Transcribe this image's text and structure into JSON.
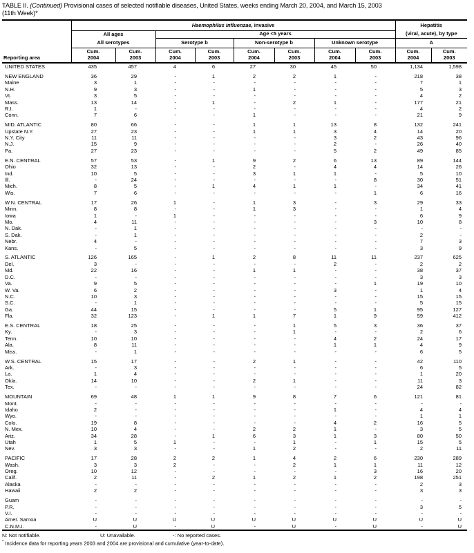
{
  "title": {
    "prefix": "TABLE II. ",
    "continued": "(Continued)",
    "line1_rest": " Provisional cases of selected notifiable diseases, United States, weeks ending March 20, 2004, and March 15, 2003",
    "line2": "(11th Week)*"
  },
  "header": {
    "reporting_area": "Reporting area",
    "group1_italic": "Haemophilus influenzae",
    "group1_rest": ", invasive",
    "hepatitis_line1": "Hepatitis",
    "hepatitis_line2": "(viral, acute), by type",
    "all_ages": "All ages",
    "age_under5": "Age <5 years",
    "all_serotypes": "All serotypes",
    "serotype_b": "Serotype b",
    "non_serotype_b": "Non-serotype b",
    "unknown_serotype": "Unknown serotype",
    "hep_a": "A",
    "cum_label": "Cum.",
    "year_2004": "2004",
    "year_2003": "2003"
  },
  "rows": [
    {
      "a": "UNITED STATES",
      "v": [
        "435",
        "457",
        "4",
        "6",
        "27",
        "30",
        "45",
        "50",
        "1,134",
        "1,598"
      ]
    },
    {
      "a": "NEW ENGLAND",
      "g": true,
      "v": [
        "36",
        "29",
        "-",
        "1",
        "2",
        "2",
        "1",
        "-",
        "218",
        "38"
      ]
    },
    {
      "a": "Maine",
      "v": [
        "3",
        "1",
        "-",
        "-",
        "-",
        "-",
        "-",
        "-",
        "7",
        "1"
      ]
    },
    {
      "a": "N.H.",
      "v": [
        "9",
        "3",
        "-",
        "-",
        "1",
        "-",
        "-",
        "-",
        "5",
        "3"
      ]
    },
    {
      "a": "Vt.",
      "v": [
        "3",
        "5",
        "-",
        "-",
        "-",
        "-",
        "-",
        "-",
        "4",
        "2"
      ]
    },
    {
      "a": "Mass.",
      "v": [
        "13",
        "14",
        "-",
        "1",
        "-",
        "2",
        "1",
        "-",
        "177",
        "21"
      ]
    },
    {
      "a": "R.I.",
      "v": [
        "1",
        "-",
        "-",
        "-",
        "-",
        "-",
        "-",
        "-",
        "4",
        "2"
      ]
    },
    {
      "a": "Conn.",
      "v": [
        "7",
        "6",
        "-",
        "-",
        "1",
        "-",
        "-",
        "-",
        "21",
        "9"
      ]
    },
    {
      "a": "MID. ATLANTIC",
      "g": true,
      "v": [
        "80",
        "66",
        "-",
        "-",
        "1",
        "1",
        "13",
        "8",
        "132",
        "241"
      ]
    },
    {
      "a": "Upstate N.Y.",
      "v": [
        "27",
        "23",
        "-",
        "-",
        "1",
        "1",
        "3",
        "4",
        "14",
        "20"
      ]
    },
    {
      "a": "N.Y. City",
      "v": [
        "11",
        "11",
        "-",
        "-",
        "-",
        "-",
        "3",
        "2",
        "43",
        "96"
      ]
    },
    {
      "a": "N.J.",
      "v": [
        "15",
        "9",
        "-",
        "-",
        "-",
        "-",
        "2",
        "-",
        "26",
        "40"
      ]
    },
    {
      "a": "Pa.",
      "v": [
        "27",
        "23",
        "-",
        "-",
        "-",
        "-",
        "5",
        "2",
        "49",
        "85"
      ]
    },
    {
      "a": "E.N. CENTRAL",
      "g": true,
      "v": [
        "57",
        "53",
        "-",
        "1",
        "9",
        "2",
        "6",
        "13",
        "89",
        "144"
      ]
    },
    {
      "a": "Ohio",
      "v": [
        "32",
        "13",
        "-",
        "-",
        "2",
        "-",
        "4",
        "4",
        "14",
        "26"
      ]
    },
    {
      "a": "Ind.",
      "v": [
        "10",
        "5",
        "-",
        "-",
        "3",
        "1",
        "1",
        "-",
        "5",
        "10"
      ]
    },
    {
      "a": "Ill.",
      "v": [
        "-",
        "24",
        "-",
        "-",
        "-",
        "-",
        "-",
        "8",
        "30",
        "51"
      ]
    },
    {
      "a": "Mich.",
      "v": [
        "8",
        "5",
        "-",
        "1",
        "4",
        "1",
        "1",
        "-",
        "34",
        "41"
      ]
    },
    {
      "a": "Wis.",
      "v": [
        "7",
        "6",
        "-",
        "-",
        "-",
        "-",
        "-",
        "1",
        "6",
        "16"
      ]
    },
    {
      "a": "W.N. CENTRAL",
      "g": true,
      "v": [
        "17",
        "26",
        "1",
        "-",
        "1",
        "3",
        "-",
        "3",
        "29",
        "33"
      ]
    },
    {
      "a": "Minn.",
      "v": [
        "8",
        "8",
        "-",
        "-",
        "1",
        "3",
        "-",
        "-",
        "1",
        "4"
      ]
    },
    {
      "a": "Iowa",
      "v": [
        "1",
        "-",
        "1",
        "-",
        "-",
        "-",
        "-",
        "-",
        "6",
        "9"
      ]
    },
    {
      "a": "Mo.",
      "v": [
        "4",
        "11",
        "-",
        "-",
        "-",
        "-",
        "-",
        "3",
        "10",
        "8"
      ]
    },
    {
      "a": "N. Dak.",
      "v": [
        "-",
        "1",
        "-",
        "-",
        "-",
        "-",
        "-",
        "-",
        "-",
        "-"
      ]
    },
    {
      "a": "S. Dak.",
      "v": [
        "-",
        "1",
        "-",
        "-",
        "-",
        "-",
        "-",
        "-",
        "2",
        "-"
      ]
    },
    {
      "a": "Nebr.",
      "v": [
        "4",
        "-",
        "-",
        "-",
        "-",
        "-",
        "-",
        "-",
        "7",
        "3"
      ]
    },
    {
      "a": "Kans.",
      "v": [
        "-",
        "5",
        "-",
        "-",
        "-",
        "-",
        "-",
        "-",
        "3",
        "9"
      ]
    },
    {
      "a": "S. ATLANTIC",
      "g": true,
      "v": [
        "126",
        "165",
        "-",
        "1",
        "2",
        "8",
        "11",
        "11",
        "237",
        "625"
      ]
    },
    {
      "a": "Del.",
      "v": [
        "3",
        "-",
        "-",
        "-",
        "-",
        "-",
        "2",
        "-",
        "2",
        "2"
      ]
    },
    {
      "a": "Md.",
      "v": [
        "22",
        "16",
        "-",
        "-",
        "1",
        "1",
        "-",
        "-",
        "38",
        "37"
      ]
    },
    {
      "a": "D.C.",
      "v": [
        "-",
        "-",
        "-",
        "-",
        "-",
        "-",
        "-",
        "-",
        "3",
        "3"
      ]
    },
    {
      "a": "Va.",
      "v": [
        "9",
        "5",
        "-",
        "-",
        "-",
        "-",
        "-",
        "1",
        "19",
        "10"
      ]
    },
    {
      "a": "W. Va.",
      "v": [
        "6",
        "2",
        "-",
        "-",
        "-",
        "-",
        "3",
        "-",
        "1",
        "4"
      ]
    },
    {
      "a": "N.C.",
      "v": [
        "10",
        "3",
        "-",
        "-",
        "-",
        "-",
        "-",
        "-",
        "15",
        "15"
      ]
    },
    {
      "a": "S.C.",
      "v": [
        "-",
        "1",
        "-",
        "-",
        "-",
        "-",
        "-",
        "-",
        "5",
        "15"
      ]
    },
    {
      "a": "Ga.",
      "v": [
        "44",
        "15",
        "-",
        "-",
        "-",
        "-",
        "5",
        "1",
        "95",
        "127"
      ]
    },
    {
      "a": "Fla.",
      "v": [
        "32",
        "123",
        "-",
        "1",
        "1",
        "7",
        "1",
        "9",
        "59",
        "412"
      ]
    },
    {
      "a": "E.S. CENTRAL",
      "g": true,
      "v": [
        "18",
        "25",
        "-",
        "-",
        "-",
        "1",
        "5",
        "3",
        "36",
        "37"
      ]
    },
    {
      "a": "Ky.",
      "v": [
        "-",
        "3",
        "-",
        "-",
        "-",
        "1",
        "-",
        "-",
        "2",
        "6"
      ]
    },
    {
      "a": "Tenn.",
      "v": [
        "10",
        "10",
        "-",
        "-",
        "-",
        "-",
        "4",
        "2",
        "24",
        "17"
      ]
    },
    {
      "a": "Ala.",
      "v": [
        "8",
        "11",
        "-",
        "-",
        "-",
        "-",
        "1",
        "1",
        "4",
        "9"
      ]
    },
    {
      "a": "Miss.",
      "v": [
        "-",
        "1",
        "-",
        "-",
        "-",
        "-",
        "-",
        "-",
        "6",
        "5"
      ]
    },
    {
      "a": "W.S. CENTRAL",
      "g": true,
      "v": [
        "15",
        "17",
        "-",
        "-",
        "2",
        "1",
        "-",
        "-",
        "42",
        "110"
      ]
    },
    {
      "a": "Ark.",
      "v": [
        "-",
        "3",
        "-",
        "-",
        "-",
        "-",
        "-",
        "-",
        "6",
        "5"
      ]
    },
    {
      "a": "La.",
      "v": [
        "1",
        "4",
        "-",
        "-",
        "-",
        "-",
        "-",
        "-",
        "1",
        "20"
      ]
    },
    {
      "a": "Okla.",
      "v": [
        "14",
        "10",
        "-",
        "-",
        "2",
        "1",
        "-",
        "-",
        "11",
        "3"
      ]
    },
    {
      "a": "Tex.",
      "v": [
        "-",
        "-",
        "-",
        "-",
        "-",
        "-",
        "-",
        "-",
        "24",
        "82"
      ]
    },
    {
      "a": "MOUNTAIN",
      "g": true,
      "v": [
        "69",
        "48",
        "1",
        "1",
        "9",
        "8",
        "7",
        "6",
        "121",
        "81"
      ]
    },
    {
      "a": "Mont.",
      "v": [
        "-",
        "-",
        "-",
        "-",
        "-",
        "-",
        "-",
        "-",
        "-",
        "-"
      ]
    },
    {
      "a": "Idaho",
      "v": [
        "2",
        "-",
        "-",
        "-",
        "-",
        "-",
        "1",
        "-",
        "4",
        "4"
      ]
    },
    {
      "a": "Wyo.",
      "v": [
        "-",
        "-",
        "-",
        "-",
        "-",
        "-",
        "-",
        "-",
        "1",
        "1"
      ]
    },
    {
      "a": "Colo.",
      "v": [
        "19",
        "8",
        "-",
        "-",
        "-",
        "-",
        "4",
        "2",
        "16",
        "5"
      ]
    },
    {
      "a": "N. Mex.",
      "v": [
        "10",
        "4",
        "-",
        "-",
        "2",
        "2",
        "1",
        "-",
        "3",
        "5"
      ]
    },
    {
      "a": "Ariz.",
      "v": [
        "34",
        "28",
        "-",
        "1",
        "6",
        "3",
        "1",
        "3",
        "80",
        "50"
      ]
    },
    {
      "a": "Utah",
      "v": [
        "1",
        "5",
        "1",
        "-",
        "-",
        "1",
        "-",
        "1",
        "15",
        "5"
      ]
    },
    {
      "a": "Nev.",
      "v": [
        "3",
        "3",
        "-",
        "-",
        "1",
        "2",
        "-",
        "-",
        "2",
        "11"
      ]
    },
    {
      "a": "PACIFIC",
      "g": true,
      "v": [
        "17",
        "28",
        "2",
        "2",
        "1",
        "4",
        "2",
        "6",
        "230",
        "289"
      ]
    },
    {
      "a": "Wash.",
      "v": [
        "3",
        "3",
        "2",
        "-",
        "-",
        "2",
        "1",
        "1",
        "11",
        "12"
      ]
    },
    {
      "a": "Oreg.",
      "v": [
        "10",
        "12",
        "-",
        "-",
        "-",
        "-",
        "-",
        "3",
        "16",
        "20"
      ]
    },
    {
      "a": "Calif.",
      "v": [
        "2",
        "11",
        "-",
        "2",
        "1",
        "2",
        "1",
        "2",
        "198",
        "251"
      ]
    },
    {
      "a": "Alaska",
      "v": [
        "-",
        "-",
        "-",
        "-",
        "-",
        "-",
        "-",
        "-",
        "2",
        "3"
      ]
    },
    {
      "a": "Hawaii",
      "v": [
        "2",
        "2",
        "-",
        "-",
        "-",
        "-",
        "-",
        "-",
        "3",
        "3"
      ]
    },
    {
      "a": "Guam",
      "g": true,
      "v": [
        "-",
        "-",
        "-",
        "-",
        "-",
        "-",
        "-",
        "-",
        "-",
        "-"
      ]
    },
    {
      "a": "P.R.",
      "v": [
        "-",
        "-",
        "-",
        "-",
        "-",
        "-",
        "-",
        "-",
        "3",
        "5"
      ]
    },
    {
      "a": "V.I.",
      "v": [
        "-",
        "-",
        "-",
        "-",
        "-",
        "-",
        "-",
        "-",
        "-",
        "-"
      ]
    },
    {
      "a": "Amer. Samoa",
      "v": [
        "U",
        "U",
        "U",
        "U",
        "U",
        "U",
        "U",
        "U",
        "U",
        "U"
      ]
    },
    {
      "a": "C.N.M.I.",
      "v": [
        "-",
        "U",
        "-",
        "U",
        "-",
        "U",
        "-",
        "U",
        "-",
        "U"
      ]
    }
  ],
  "footnotes": {
    "not_notifiable": "N: Not notifiable.",
    "unavailable": "U: Unavailable.",
    "no_cases": "-: No reported cases.",
    "asterisk": "*",
    "incidence": " Incidence data for reporting years 2003 and 2004 are provisional and cumulative (year-to-date)."
  }
}
